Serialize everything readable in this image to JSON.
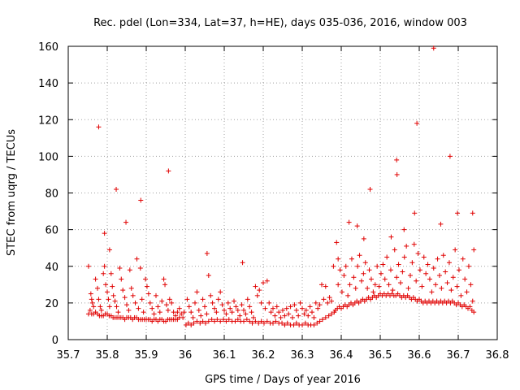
{
  "chart_data": {
    "type": "scatter",
    "title": "Rec. pdel (Lon=334, Lat=37, h=HE), days 035-036, 2016, window 003",
    "xlabel": "GPS time / Days of year 2016",
    "ylabel": "STEC from uqrg / TECUs",
    "xlim": [
      35.7,
      36.8
    ],
    "ylim": [
      0,
      160
    ],
    "xticks": [
      35.7,
      35.8,
      35.9,
      36.0,
      36.1,
      36.2,
      36.3,
      36.4,
      36.5,
      36.6,
      36.7,
      36.8
    ],
    "xtick_labels": [
      "35.7",
      "35.8",
      "35.9",
      "36",
      "36.1",
      "36.2",
      "36.3",
      "36.4",
      "36.5",
      "36.6",
      "36.7",
      "36.8"
    ],
    "yticks": [
      0,
      20,
      40,
      60,
      80,
      100,
      120,
      140,
      160
    ],
    "ytick_labels": [
      "0",
      "20",
      "40",
      "60",
      "80",
      "100",
      "120",
      "140",
      "160"
    ],
    "grid": true,
    "marker": "+",
    "color": "#e00000",
    "points": [
      [
        35.778,
        116
      ],
      [
        35.823,
        82
      ],
      [
        35.848,
        64
      ],
      [
        35.886,
        76
      ],
      [
        35.957,
        92
      ],
      [
        35.793,
        58
      ],
      [
        35.806,
        49
      ],
      [
        36.056,
        47
      ],
      [
        36.147,
        42
      ],
      [
        36.474,
        82
      ],
      [
        36.542,
        98
      ],
      [
        36.543,
        90
      ],
      [
        36.594,
        118
      ],
      [
        36.637,
        159
      ],
      [
        36.679,
        100
      ],
      [
        36.737,
        69
      ],
      [
        36.698,
        69
      ],
      [
        36.655,
        63
      ],
      [
        36.588,
        69
      ],
      [
        36.561,
        60
      ],
      [
        36.528,
        56
      ],
      [
        36.441,
        62
      ],
      [
        36.42,
        64
      ],
      [
        36.388,
        53
      ],
      [
        36.458,
        55
      ],
      [
        36.392,
        44
      ],
      [
        35.752,
        40
      ],
      [
        35.758,
        25
      ],
      [
        35.76,
        22
      ],
      [
        35.762,
        20
      ],
      [
        35.765,
        18
      ],
      [
        35.77,
        33
      ],
      [
        35.775,
        28
      ],
      [
        35.778,
        22
      ],
      [
        35.782,
        18
      ],
      [
        35.785,
        16
      ],
      [
        35.79,
        36
      ],
      [
        35.793,
        40
      ],
      [
        35.796,
        30
      ],
      [
        35.8,
        26
      ],
      [
        35.803,
        22
      ],
      [
        35.806,
        18
      ],
      [
        35.81,
        36
      ],
      [
        35.813,
        29
      ],
      [
        35.816,
        24
      ],
      [
        35.82,
        21
      ],
      [
        35.824,
        18
      ],
      [
        35.828,
        15
      ],
      [
        35.832,
        39
      ],
      [
        35.836,
        33
      ],
      [
        35.84,
        27
      ],
      [
        35.845,
        23
      ],
      [
        35.85,
        19
      ],
      [
        35.855,
        16
      ],
      [
        35.858,
        38
      ],
      [
        35.862,
        28
      ],
      [
        35.866,
        24
      ],
      [
        35.872,
        20
      ],
      [
        35.876,
        44
      ],
      [
        35.88,
        17
      ],
      [
        35.885,
        39
      ],
      [
        35.889,
        22
      ],
      [
        35.893,
        15
      ],
      [
        35.898,
        33
      ],
      [
        35.902,
        29
      ],
      [
        35.906,
        25
      ],
      [
        35.91,
        20
      ],
      [
        35.915,
        17
      ],
      [
        35.92,
        14
      ],
      [
        35.925,
        24
      ],
      [
        35.93,
        18
      ],
      [
        35.935,
        15
      ],
      [
        35.94,
        21
      ],
      [
        35.945,
        33
      ],
      [
        35.948,
        30
      ],
      [
        35.952,
        19
      ],
      [
        35.956,
        16
      ],
      [
        35.96,
        22
      ],
      [
        35.965,
        20
      ],
      [
        35.97,
        15
      ],
      [
        35.975,
        13
      ],
      [
        35.98,
        15
      ],
      [
        35.985,
        17
      ],
      [
        35.99,
        14
      ],
      [
        35.994,
        12
      ],
      [
        35.997,
        15
      ],
      [
        35.752,
        14
      ],
      [
        35.756,
        16
      ],
      [
        35.76,
        14
      ],
      [
        35.765,
        14
      ],
      [
        35.77,
        15
      ],
      [
        35.775,
        14
      ],
      [
        35.78,
        13
      ],
      [
        35.785,
        13
      ],
      [
        35.79,
        13
      ],
      [
        35.795,
        14
      ],
      [
        35.8,
        14
      ],
      [
        35.805,
        13
      ],
      [
        35.81,
        13
      ],
      [
        35.815,
        12
      ],
      [
        35.82,
        12
      ],
      [
        35.825,
        12
      ],
      [
        35.83,
        12
      ],
      [
        35.835,
        12
      ],
      [
        35.84,
        12
      ],
      [
        35.845,
        11
      ],
      [
        35.85,
        12
      ],
      [
        35.855,
        12
      ],
      [
        35.86,
        12
      ],
      [
        35.865,
        11
      ],
      [
        35.87,
        12
      ],
      [
        35.875,
        12
      ],
      [
        35.88,
        11
      ],
      [
        35.885,
        11
      ],
      [
        35.89,
        11
      ],
      [
        35.895,
        11
      ],
      [
        35.9,
        11
      ],
      [
        35.905,
        11
      ],
      [
        35.91,
        11
      ],
      [
        35.915,
        10
      ],
      [
        35.92,
        11
      ],
      [
        35.925,
        11
      ],
      [
        35.93,
        10
      ],
      [
        35.935,
        11
      ],
      [
        35.94,
        11
      ],
      [
        35.945,
        10
      ],
      [
        35.95,
        10
      ],
      [
        35.955,
        11
      ],
      [
        35.96,
        11
      ],
      [
        35.965,
        11
      ],
      [
        35.97,
        11
      ],
      [
        35.975,
        11
      ],
      [
        35.98,
        11
      ],
      [
        35.985,
        12
      ],
      [
        36.005,
        22
      ],
      [
        36.01,
        18
      ],
      [
        36.015,
        15
      ],
      [
        36.02,
        12
      ],
      [
        36.025,
        20
      ],
      [
        36.03,
        26
      ],
      [
        36.035,
        16
      ],
      [
        36.04,
        13
      ],
      [
        36.045,
        22
      ],
      [
        36.05,
        18
      ],
      [
        36.055,
        14
      ],
      [
        36.06,
        35
      ],
      [
        36.065,
        24
      ],
      [
        36.07,
        20
      ],
      [
        36.075,
        17
      ],
      [
        36.08,
        15
      ],
      [
        36.085,
        22
      ],
      [
        36.09,
        26
      ],
      [
        36.095,
        19
      ],
      [
        36.1,
        16
      ],
      [
        36.105,
        14
      ],
      [
        36.11,
        20
      ],
      [
        36.115,
        17
      ],
      [
        36.12,
        15
      ],
      [
        36.125,
        21
      ],
      [
        36.13,
        18
      ],
      [
        36.135,
        16
      ],
      [
        36.14,
        13
      ],
      [
        36.145,
        19
      ],
      [
        36.15,
        16
      ],
      [
        36.155,
        14
      ],
      [
        36.16,
        22
      ],
      [
        36.165,
        18
      ],
      [
        36.17,
        15
      ],
      [
        36.175,
        12
      ],
      [
        36.18,
        29
      ],
      [
        36.185,
        24
      ],
      [
        36.19,
        27
      ],
      [
        36.195,
        20
      ],
      [
        36.2,
        31
      ],
      [
        36.205,
        17
      ],
      [
        36.21,
        32
      ],
      [
        36.215,
        20
      ],
      [
        36.22,
        15
      ],
      [
        36.225,
        17
      ],
      [
        36.23,
        13
      ],
      [
        36.235,
        18
      ],
      [
        36.24,
        15
      ],
      [
        36.245,
        12
      ],
      [
        36.25,
        16
      ],
      [
        36.255,
        13
      ],
      [
        36.26,
        17
      ],
      [
        36.265,
        14
      ],
      [
        36.27,
        18
      ],
      [
        36.275,
        12
      ],
      [
        36.28,
        19
      ],
      [
        36.285,
        16
      ],
      [
        36.29,
        13
      ],
      [
        36.295,
        20
      ],
      [
        36.3,
        17
      ],
      [
        36.305,
        14
      ],
      [
        36.31,
        16
      ],
      [
        36.315,
        13
      ],
      [
        36.32,
        18
      ],
      [
        36.325,
        15
      ],
      [
        36.33,
        12
      ],
      [
        36.335,
        20
      ],
      [
        36.34,
        17
      ],
      [
        36.345,
        19
      ],
      [
        36.35,
        30
      ],
      [
        36.355,
        22
      ],
      [
        36.36,
        29
      ],
      [
        36.365,
        20
      ],
      [
        36.37,
        23
      ],
      [
        36.375,
        21
      ],
      [
        36.38,
        40
      ],
      [
        36.002,
        8
      ],
      [
        36.008,
        9
      ],
      [
        36.015,
        8
      ],
      [
        36.022,
        9
      ],
      [
        36.03,
        10
      ],
      [
        36.038,
        9
      ],
      [
        36.045,
        10
      ],
      [
        36.052,
        9
      ],
      [
        36.06,
        10
      ],
      [
        36.068,
        11
      ],
      [
        36.075,
        10
      ],
      [
        36.082,
        11
      ],
      [
        36.09,
        10
      ],
      [
        36.098,
        11
      ],
      [
        36.105,
        10
      ],
      [
        36.112,
        11
      ],
      [
        36.12,
        10
      ],
      [
        36.128,
        10
      ],
      [
        36.135,
        11
      ],
      [
        36.142,
        10
      ],
      [
        36.15,
        10
      ],
      [
        36.158,
        11
      ],
      [
        36.165,
        10
      ],
      [
        36.172,
        9
      ],
      [
        36.18,
        10
      ],
      [
        36.188,
        9
      ],
      [
        36.195,
        10
      ],
      [
        36.202,
        9
      ],
      [
        36.21,
        10
      ],
      [
        36.218,
        9
      ],
      [
        36.225,
        9
      ],
      [
        36.232,
        10
      ],
      [
        36.24,
        9
      ],
      [
        36.248,
        9
      ],
      [
        36.255,
        8
      ],
      [
        36.262,
        9
      ],
      [
        36.27,
        8
      ],
      [
        36.278,
        8
      ],
      [
        36.285,
        9
      ],
      [
        36.292,
        8
      ],
      [
        36.3,
        8
      ],
      [
        36.308,
        9
      ],
      [
        36.315,
        8
      ],
      [
        36.322,
        8
      ],
      [
        36.33,
        8
      ],
      [
        36.338,
        9
      ],
      [
        36.345,
        10
      ],
      [
        36.352,
        11
      ],
      [
        36.36,
        12
      ],
      [
        36.368,
        13
      ],
      [
        36.375,
        14
      ],
      [
        36.382,
        15
      ],
      [
        36.385,
        16
      ],
      [
        36.39,
        17
      ],
      [
        36.395,
        18
      ],
      [
        36.4,
        17
      ],
      [
        36.405,
        18
      ],
      [
        36.41,
        19
      ],
      [
        36.415,
        18
      ],
      [
        36.42,
        19
      ],
      [
        36.425,
        20
      ],
      [
        36.43,
        19
      ],
      [
        36.435,
        20
      ],
      [
        36.44,
        21
      ],
      [
        36.445,
        20
      ],
      [
        36.45,
        21
      ],
      [
        36.455,
        22
      ],
      [
        36.46,
        21
      ],
      [
        36.465,
        22
      ],
      [
        36.47,
        23
      ],
      [
        36.475,
        22
      ],
      [
        36.48,
        23
      ],
      [
        36.485,
        24
      ],
      [
        36.49,
        23
      ],
      [
        36.495,
        24
      ],
      [
        36.5,
        25
      ],
      [
        36.505,
        24
      ],
      [
        36.51,
        25
      ],
      [
        36.515,
        24
      ],
      [
        36.52,
        25
      ],
      [
        36.525,
        24
      ],
      [
        36.53,
        25
      ],
      [
        36.535,
        24
      ],
      [
        36.54,
        24
      ],
      [
        36.545,
        25
      ],
      [
        36.55,
        24
      ],
      [
        36.555,
        23
      ],
      [
        36.56,
        24
      ],
      [
        36.565,
        23
      ],
      [
        36.57,
        24
      ],
      [
        36.575,
        23
      ],
      [
        36.58,
        22
      ],
      [
        36.585,
        23
      ],
      [
        36.59,
        22
      ],
      [
        36.595,
        21
      ],
      [
        36.6,
        22
      ],
      [
        36.605,
        21
      ],
      [
        36.61,
        20
      ],
      [
        36.615,
        21
      ],
      [
        36.62,
        20
      ],
      [
        36.625,
        21
      ],
      [
        36.63,
        20
      ],
      [
        36.635,
        21
      ],
      [
        36.64,
        20
      ],
      [
        36.645,
        21
      ],
      [
        36.65,
        20
      ],
      [
        36.655,
        21
      ],
      [
        36.66,
        20
      ],
      [
        36.665,
        21
      ],
      [
        36.67,
        20
      ],
      [
        36.675,
        21
      ],
      [
        36.68,
        20
      ],
      [
        36.685,
        21
      ],
      [
        36.69,
        20
      ],
      [
        36.695,
        19
      ],
      [
        36.7,
        20
      ],
      [
        36.705,
        19
      ],
      [
        36.71,
        18
      ],
      [
        36.715,
        19
      ],
      [
        36.72,
        18
      ],
      [
        36.725,
        17
      ],
      [
        36.73,
        18
      ],
      [
        36.735,
        16
      ],
      [
        36.74,
        15
      ],
      [
        36.392,
        30
      ],
      [
        36.397,
        38
      ],
      [
        36.402,
        26
      ],
      [
        36.407,
        35
      ],
      [
        36.412,
        40
      ],
      [
        36.417,
        24
      ],
      [
        36.422,
        30
      ],
      [
        36.427,
        44
      ],
      [
        36.432,
        34
      ],
      [
        36.437,
        28
      ],
      [
        36.442,
        40
      ],
      [
        36.447,
        46
      ],
      [
        36.452,
        32
      ],
      [
        36.457,
        36
      ],
      [
        36.462,
        42
      ],
      [
        36.467,
        28
      ],
      [
        36.472,
        38
      ],
      [
        36.477,
        33
      ],
      [
        36.482,
        26
      ],
      [
        36.487,
        30
      ],
      [
        36.492,
        40
      ],
      [
        36.497,
        29
      ],
      [
        36.502,
        36
      ],
      [
        36.507,
        41
      ],
      [
        36.512,
        33
      ],
      [
        36.517,
        45
      ],
      [
        36.522,
        30
      ],
      [
        36.527,
        38
      ],
      [
        36.532,
        27
      ],
      [
        36.537,
        49
      ],
      [
        36.542,
        34
      ],
      [
        36.547,
        41
      ],
      [
        36.552,
        31
      ],
      [
        36.557,
        37
      ],
      [
        36.562,
        45
      ],
      [
        36.567,
        51
      ],
      [
        36.572,
        28
      ],
      [
        36.577,
        35
      ],
      [
        36.582,
        42
      ],
      [
        36.587,
        52
      ],
      [
        36.592,
        32
      ],
      [
        36.597,
        47
      ],
      [
        36.602,
        38
      ],
      [
        36.607,
        29
      ],
      [
        36.612,
        45
      ],
      [
        36.617,
        36
      ],
      [
        36.622,
        41
      ],
      [
        36.627,
        33
      ],
      [
        36.632,
        26
      ],
      [
        36.637,
        39
      ],
      [
        36.642,
        30
      ],
      [
        36.647,
        44
      ],
      [
        36.652,
        35
      ],
      [
        36.657,
        28
      ],
      [
        36.662,
        46
      ],
      [
        36.667,
        37
      ],
      [
        36.672,
        31
      ],
      [
        36.677,
        42
      ],
      [
        36.682,
        27
      ],
      [
        36.687,
        34
      ],
      [
        36.692,
        49
      ],
      [
        36.697,
        29
      ],
      [
        36.702,
        38
      ],
      [
        36.707,
        24
      ],
      [
        36.712,
        44
      ],
      [
        36.717,
        33
      ],
      [
        36.722,
        26
      ],
      [
        36.727,
        40
      ],
      [
        36.732,
        30
      ],
      [
        36.737,
        21
      ],
      [
        36.74,
        49
      ]
    ]
  }
}
